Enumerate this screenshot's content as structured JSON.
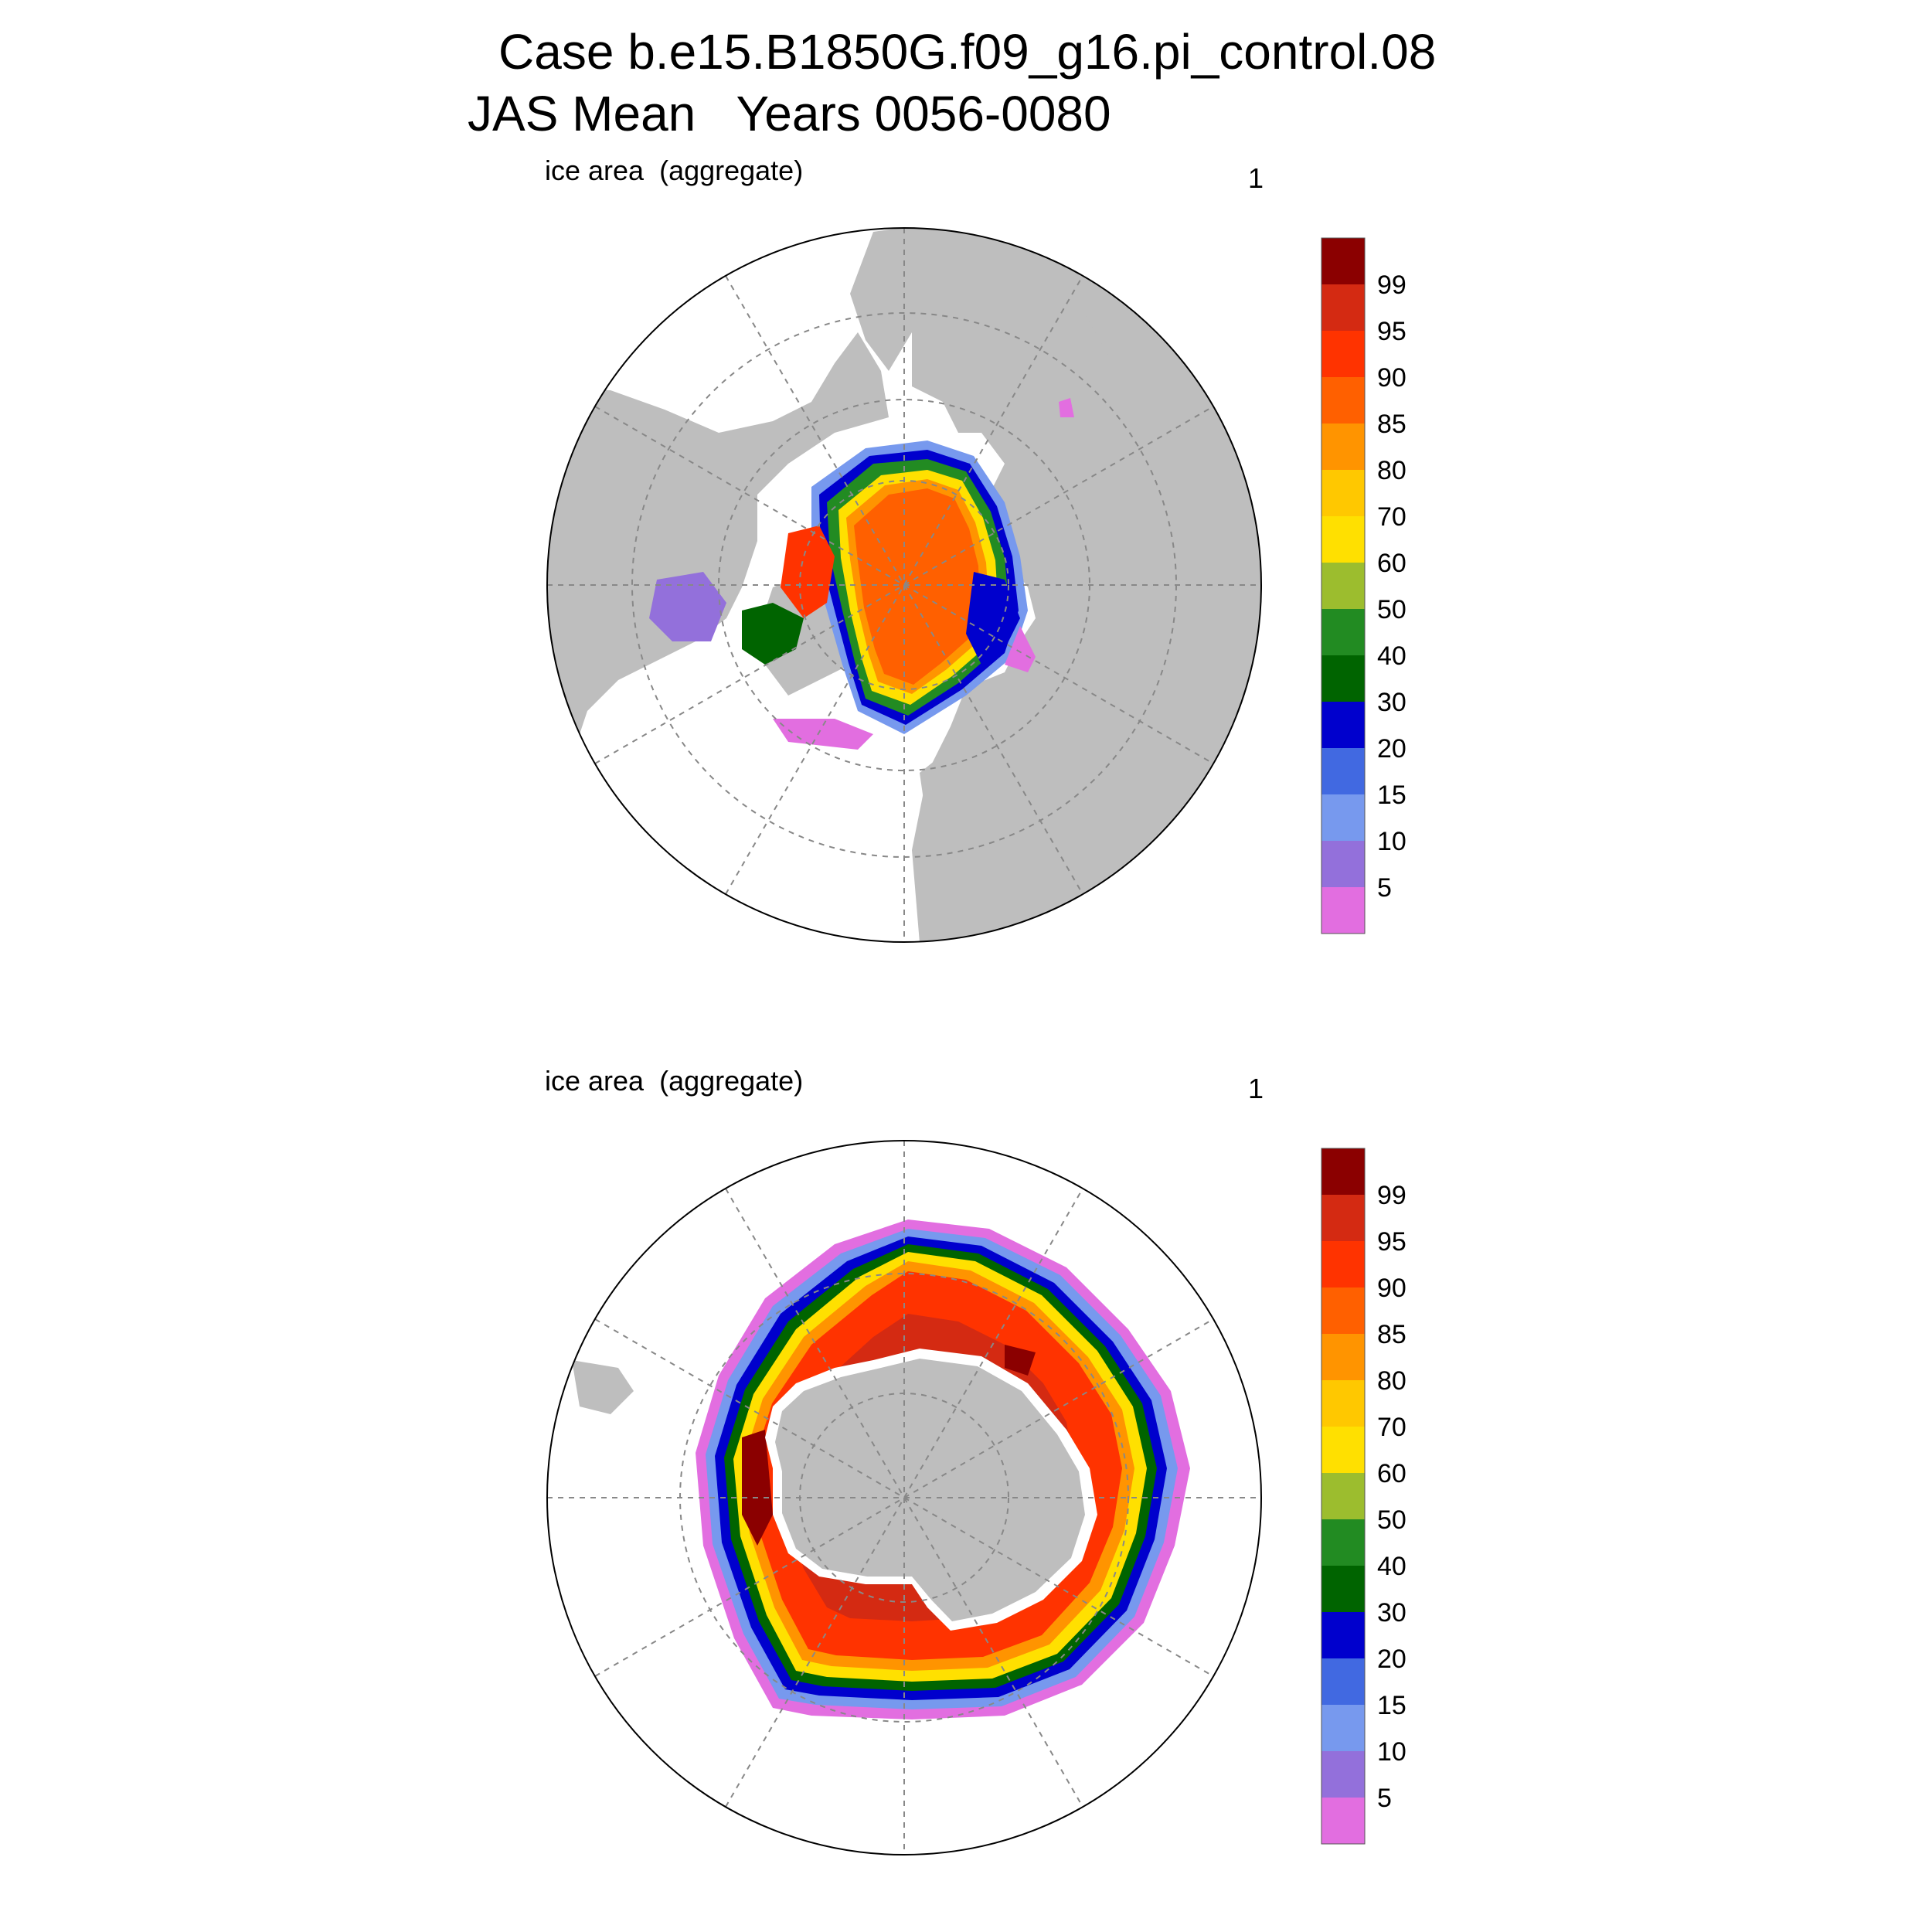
{
  "title": {
    "line1": "Case b.e15.B1850G.f09_g16.pi_control.08",
    "line2": "JAS Mean   Years 0056-0080"
  },
  "legend": {
    "labels": [
      "99",
      "95",
      "90",
      "85",
      "80",
      "70",
      "60",
      "50",
      "40",
      "30",
      "20",
      "15",
      "10",
      "5"
    ],
    "colors": [
      "#8b0000",
      "#d42a12",
      "#ff3300",
      "#ff6000",
      "#ff9400",
      "#ffc800",
      "#ffe000",
      "#9cbd2e",
      "#228b22",
      "#006400",
      "#0000cd",
      "#4169e1",
      "#7799ee",
      "#9370db",
      "#e26ee0"
    ]
  },
  "colors": {
    "land": "#bebebe",
    "ocean": "#ffffff",
    "grid": "#888888"
  },
  "panels": [
    {
      "id": "north",
      "title": "ice area  (aggregate)",
      "number": "1",
      "hemisphere": "Northern Hemisphere polar stereographic"
    },
    {
      "id": "south",
      "title": "ice area  (aggregate)",
      "number": "1",
      "hemisphere": "Southern Hemisphere polar stereographic"
    }
  ]
}
